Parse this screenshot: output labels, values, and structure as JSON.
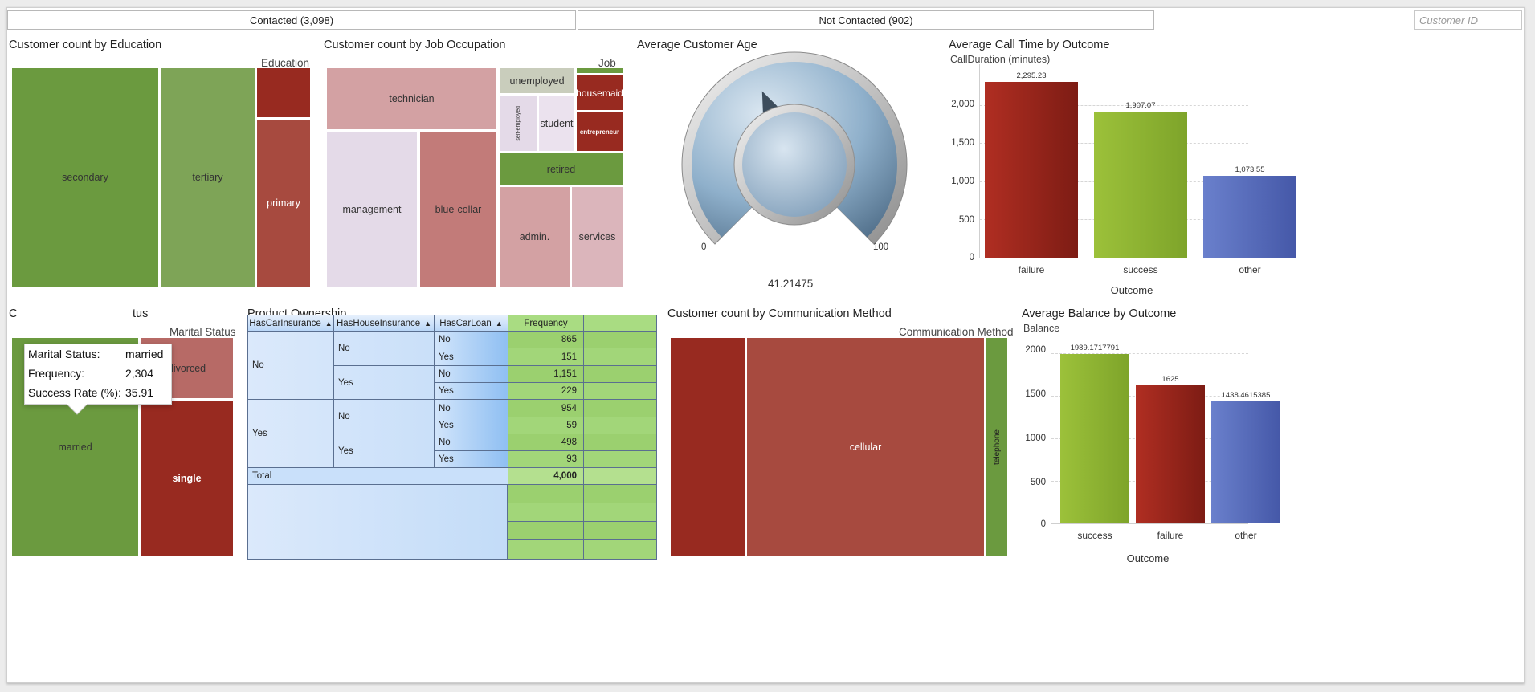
{
  "top_bar": {
    "contacted": "Contacted (3,098)",
    "not_contacted": "Not Contacted (902)",
    "search_placeholder": "Customer ID"
  },
  "colors": {
    "green_dark": "#6b9a3f",
    "green_mid": "#7ea457",
    "red_dark": "#982a20",
    "red_mid": "#a74a3f",
    "pink": "#d3a1a3",
    "lavender": "#e4dae8",
    "bar_red": "#a0281e",
    "bar_green": "#8eb52f",
    "bar_blue": "#5a72c0"
  },
  "education": {
    "title": "Customer count by Education",
    "legend": "Education",
    "tiles": [
      "secondary",
      "tertiary",
      "primary"
    ]
  },
  "job": {
    "title": "Customer count by Job Occupation",
    "legend": "Job",
    "tiles": [
      "technician",
      "management",
      "blue-collar",
      "unemployed",
      "self-employed",
      "student",
      "housemaid",
      "entrepreneur",
      "retired",
      "admin.",
      "services"
    ]
  },
  "age": {
    "title": "Average Customer Age",
    "min": "0",
    "max": "100",
    "value": "41.21475",
    "value_num": 41.21475
  },
  "calltime": {
    "title": "Average Call Time by Outcome",
    "ylabel": "CallDuration (minutes)",
    "xlabel": "Outcome",
    "yticks": [
      "2,000",
      "1,500",
      "1,000",
      "500",
      "0"
    ]
  },
  "marital": {
    "title_visible": "C",
    "title_tail": "tus",
    "legend": "Marital Status",
    "tiles": [
      "divorced",
      "married",
      "single"
    ],
    "tooltip": {
      "k1": "Marital Status:",
      "v1": "married",
      "k2": "Frequency:",
      "v2": "2,304",
      "k3": "Success Rate (%):",
      "v3": "35.91"
    }
  },
  "product": {
    "title": "Product Ownership",
    "headers": [
      "HasCarInsurance",
      "HasHouseInsurance",
      "HasCarLoan",
      "Frequency"
    ],
    "car_ins": [
      "No",
      "Yes"
    ],
    "house_ins": [
      "No",
      "Yes",
      "No",
      "Yes"
    ],
    "car_loan": [
      "No",
      "Yes",
      "No",
      "Yes",
      "No",
      "Yes",
      "No",
      "Yes"
    ],
    "freq": [
      "865",
      "151",
      "1,151",
      "229",
      "954",
      "59",
      "498",
      "93"
    ],
    "total_label": "Total",
    "total": "4,000"
  },
  "comm": {
    "title": "Customer count by Communication Method",
    "legend": "Communication Method",
    "tiles": [
      "cellular",
      "telephone"
    ]
  },
  "balance": {
    "title": "Average Balance by Outcome",
    "ylabel": "Balance",
    "xlabel": "Outcome",
    "yticks": [
      "2000",
      "1500",
      "1000",
      "500",
      "0"
    ]
  },
  "chart_data": [
    {
      "type": "bar",
      "title": "Average Call Time by Outcome",
      "xlabel": "Outcome",
      "ylabel": "CallDuration (minutes)",
      "categories": [
        "failure",
        "success",
        "other"
      ],
      "values": [
        2295.23,
        1907.07,
        1073.55
      ],
      "labels": [
        "2,295.23",
        "1,907.07",
        "1,073.55"
      ],
      "ylim": [
        0,
        2500
      ],
      "grid": true
    },
    {
      "type": "bar",
      "title": "Average Balance by Outcome",
      "xlabel": "Outcome",
      "ylabel": "Balance",
      "categories": [
        "success",
        "failure",
        "other"
      ],
      "values": [
        1989.1717791,
        1625,
        1438.4615385
      ],
      "labels": [
        "1989.1717791",
        "1625",
        "1438.4615385"
      ],
      "ylim": [
        0,
        2000
      ],
      "grid": true
    }
  ]
}
